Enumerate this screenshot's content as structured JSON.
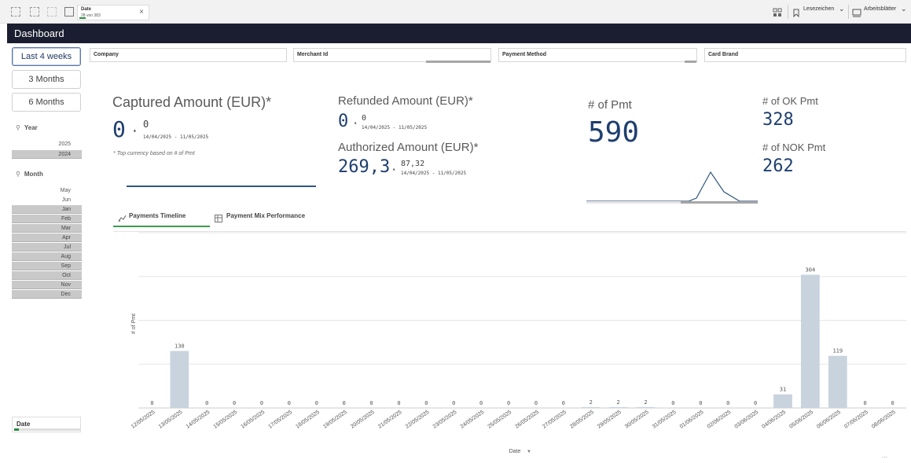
{
  "toolbar": {
    "date_chip_title": "Date",
    "date_chip_value": "28 von 383",
    "close": "×",
    "bookmarks_label": "Lesezeichen",
    "sheets_label": "Arbeitsblätter",
    "chev": "⌄"
  },
  "header": {
    "title": "Dashboard"
  },
  "ranges": [
    "Last 4 weeks",
    "3 Months",
    "6 Months"
  ],
  "year_filter": {
    "title": "Year",
    "items": [
      "2025",
      "2024"
    ]
  },
  "month_filter": {
    "title": "Month",
    "items": [
      "May",
      "Jun",
      "Jan",
      "Feb",
      "Mar",
      "Apr",
      "Jul",
      "Aug",
      "Sep",
      "Oct",
      "Nov",
      "Dec"
    ]
  },
  "filters": [
    "Company",
    "Merchant Id",
    "Payment Method",
    "Card Brand"
  ],
  "kpis": {
    "captured": {
      "title": "Captured Amount (EUR)*",
      "value": "0",
      "sub": "0",
      "range": "14/04/2025 - 11/05/2025",
      "note": "* Top currency based on # of Pmt"
    },
    "refunded": {
      "title": "Refunded Amount (EUR)*",
      "value": "0",
      "sub": "0",
      "range": "14/04/2025 - 11/05/2025"
    },
    "authorized": {
      "title": "Authorized Amount (EUR)*",
      "value": "269,3",
      "sub": "87,32",
      "range": "14/04/2025 - 11/05/2025"
    },
    "pmt": {
      "title": "# of Pmt",
      "value": "590"
    },
    "ok": {
      "title": "# of OK Pmt",
      "value": "328"
    },
    "nok": {
      "title": "# of NOK Pmt",
      "value": "262"
    }
  },
  "tabs": [
    "Payments Timeline",
    "Payment Mix Performance"
  ],
  "date_filter": {
    "title": "Date"
  },
  "chart_data": {
    "type": "bar",
    "xlabel": "Date",
    "ylabel": "# of Pmt",
    "ylim": [
      0,
      400
    ],
    "grid": true,
    "categories": [
      "12/05/2025",
      "13/05/2025",
      "14/05/2025",
      "15/05/2025",
      "16/05/2025",
      "17/05/2025",
      "18/05/2025",
      "19/05/2025",
      "20/05/2025",
      "21/05/2025",
      "22/05/2025",
      "23/05/2025",
      "24/05/2025",
      "25/05/2025",
      "26/05/2025",
      "27/05/2025",
      "28/05/2025",
      "29/05/2025",
      "30/05/2025",
      "31/05/2025",
      "01/06/2025",
      "02/06/2025",
      "03/06/2025",
      "04/06/2025",
      "05/06/2025",
      "06/06/2025",
      "07/06/2025",
      "08/06/2025"
    ],
    "values": [
      0,
      130,
      0,
      0,
      0,
      0,
      0,
      0,
      0,
      0,
      0,
      0,
      0,
      0,
      0,
      0,
      2,
      2,
      2,
      0,
      0,
      0,
      0,
      31,
      304,
      119,
      0,
      0
    ],
    "colors": {
      "bar": "#c8d3de"
    }
  }
}
